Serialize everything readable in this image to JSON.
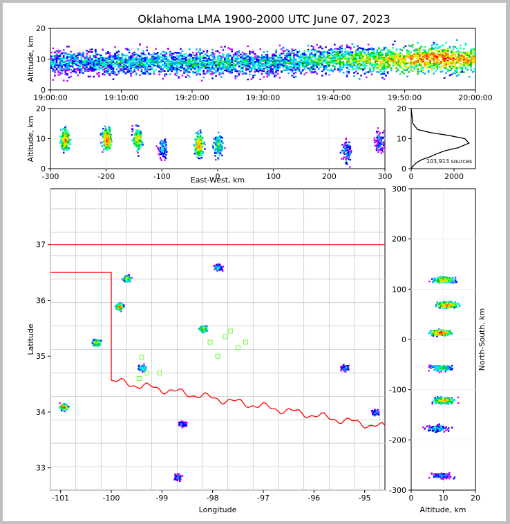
{
  "title": "Oklahoma LMA 1900-2000 UTC June 07, 2023",
  "colors": {
    "density_scale": [
      "#ffffff",
      "#cc00ff",
      "#0000ff",
      "#00aaff",
      "#00ffcc",
      "#00cc00",
      "#ccff00",
      "#ffcc00",
      "#ff6600",
      "#ff0000"
    ],
    "state_border": "#ff0000",
    "county_lines": "#c8c8c8",
    "station_markers": "#66ff33"
  },
  "chart_data": [
    {
      "id": "time-height",
      "type": "heatmap",
      "ylabel": "Altitude, km",
      "xlim": [
        "19:00:00",
        "20:00:00"
      ],
      "ylim": [
        0,
        20
      ],
      "xticks": [
        "19:00:00",
        "19:10:00",
        "19:20:00",
        "19:30:00",
        "19:40:00",
        "19:50:00",
        "20:00:00"
      ],
      "yticks": [
        0,
        10,
        20
      ],
      "series": [
        {
          "x": 0,
          "center_alt_km": 9,
          "spread_km": 3,
          "density": 0.35
        },
        {
          "x": 10,
          "center_alt_km": 9,
          "spread_km": 3,
          "density": 0.4
        },
        {
          "x": 20,
          "center_alt_km": 9,
          "spread_km": 3.2,
          "density": 0.45
        },
        {
          "x": 30,
          "center_alt_km": 9,
          "spread_km": 3,
          "density": 0.4
        },
        {
          "x": 40,
          "center_alt_km": 10,
          "spread_km": 3.2,
          "density": 0.55
        },
        {
          "x": 48,
          "center_alt_km": 10,
          "spread_km": 3.4,
          "density": 0.75
        },
        {
          "x": 55,
          "center_alt_km": 10.5,
          "spread_km": 3.4,
          "density": 0.95
        },
        {
          "x": 60,
          "center_alt_km": 10,
          "spread_km": 3.2,
          "density": 0.8
        }
      ],
      "x_units": "minutes after 19:00:00"
    },
    {
      "id": "east-west-altitude",
      "type": "heatmap",
      "xlabel": "East-West, km",
      "ylabel": "Altitude, km",
      "xlim": [
        -300,
        300
      ],
      "ylim": [
        0,
        20
      ],
      "xticks": [
        -300,
        -200,
        -100,
        0,
        100,
        200,
        300
      ],
      "yticks": [
        0,
        10,
        20
      ],
      "clusters": [
        {
          "x_km": -275,
          "alt_km": 10,
          "density": 0.9
        },
        {
          "x_km": -200,
          "alt_km": 10,
          "density": 1.0
        },
        {
          "x_km": -145,
          "alt_km": 10,
          "density": 0.8
        },
        {
          "x_km": -100,
          "alt_km": 7,
          "density": 0.4
        },
        {
          "x_km": -35,
          "alt_km": 8,
          "density": 0.95
        },
        {
          "x_km": 0,
          "alt_km": 8,
          "density": 0.6
        },
        {
          "x_km": 230,
          "alt_km": 6,
          "density": 0.35
        },
        {
          "x_km": 290,
          "alt_km": 9,
          "density": 0.3
        }
      ]
    },
    {
      "id": "altitude-histogram",
      "type": "line",
      "xlim": [
        0,
        3000
      ],
      "ylim": [
        0,
        20
      ],
      "xticks": [
        0,
        2000
      ],
      "yticks": [
        0,
        10,
        20
      ],
      "annotation": "103,913 sources",
      "x": [
        0,
        100,
        250,
        500,
        900,
        1200,
        1600,
        2200,
        2700,
        2500,
        1800,
        900,
        300,
        80,
        0
      ],
      "y": [
        0,
        1,
        2,
        3,
        4,
        5,
        6,
        7,
        8.5,
        10,
        11,
        12,
        13,
        15,
        20
      ]
    },
    {
      "id": "plan-view",
      "type": "heatmap",
      "xlabel": "Longitude",
      "ylabel": "Latitude",
      "xlim": [
        -101.2,
        -94.6
      ],
      "ylim": [
        32.6,
        38
      ],
      "xticks": [
        -101,
        -100,
        -99,
        -98,
        -97,
        -96,
        -95
      ],
      "yticks": [
        33,
        34,
        35,
        36,
        37
      ],
      "clusters": [
        {
          "lon": -100.95,
          "lat": 34.1,
          "density": 1.0
        },
        {
          "lon": -99.85,
          "lat": 35.9,
          "density": 0.95
        },
        {
          "lon": -99.7,
          "lat": 36.4,
          "density": 0.75
        },
        {
          "lon": -100.3,
          "lat": 35.25,
          "density": 0.85
        },
        {
          "lon": -98.2,
          "lat": 35.5,
          "density": 0.8
        },
        {
          "lon": -97.9,
          "lat": 36.6,
          "density": 0.45
        },
        {
          "lon": -99.4,
          "lat": 34.8,
          "density": 0.55
        },
        {
          "lon": -95.4,
          "lat": 34.8,
          "density": 0.4
        },
        {
          "lon": -94.8,
          "lat": 34.0,
          "density": 0.35
        },
        {
          "lon": -98.6,
          "lat": 33.8,
          "density": 0.35
        },
        {
          "lon": -98.7,
          "lat": 32.85,
          "density": 0.3
        }
      ],
      "stations": [
        {
          "lon": -99.4,
          "lat": 34.98
        },
        {
          "lon": -99.3,
          "lat": 34.7
        },
        {
          "lon": -99.45,
          "lat": 34.6
        },
        {
          "lon": -99.05,
          "lat": 34.7
        },
        {
          "lon": -98.05,
          "lat": 35.25
        },
        {
          "lon": -97.9,
          "lat": 35.0
        },
        {
          "lon": -97.75,
          "lat": 35.35
        },
        {
          "lon": -97.5,
          "lat": 35.15
        },
        {
          "lon": -97.35,
          "lat": 35.25
        },
        {
          "lon": -97.65,
          "lat": 35.45
        }
      ]
    },
    {
      "id": "north-south-altitude",
      "type": "heatmap",
      "xlabel": "Altitude, km",
      "ylabel": "North-South, km",
      "xlim": [
        0,
        20
      ],
      "ylim": [
        -300,
        300
      ],
      "xticks": [
        0,
        10,
        20
      ],
      "yticks": [
        -300,
        -200,
        -100,
        0,
        100,
        200,
        300
      ],
      "clusters": [
        {
          "y_km": 120,
          "alt_km": 10,
          "density": 0.85
        },
        {
          "y_km": 70,
          "alt_km": 11,
          "density": 0.95
        },
        {
          "y_km": 15,
          "alt_km": 9,
          "density": 1.0
        },
        {
          "y_km": -55,
          "alt_km": 9,
          "density": 0.6
        },
        {
          "y_km": -120,
          "alt_km": 10,
          "density": 0.9
        },
        {
          "y_km": -175,
          "alt_km": 8,
          "density": 0.45
        },
        {
          "y_km": -270,
          "alt_km": 9,
          "density": 0.35
        }
      ]
    }
  ]
}
